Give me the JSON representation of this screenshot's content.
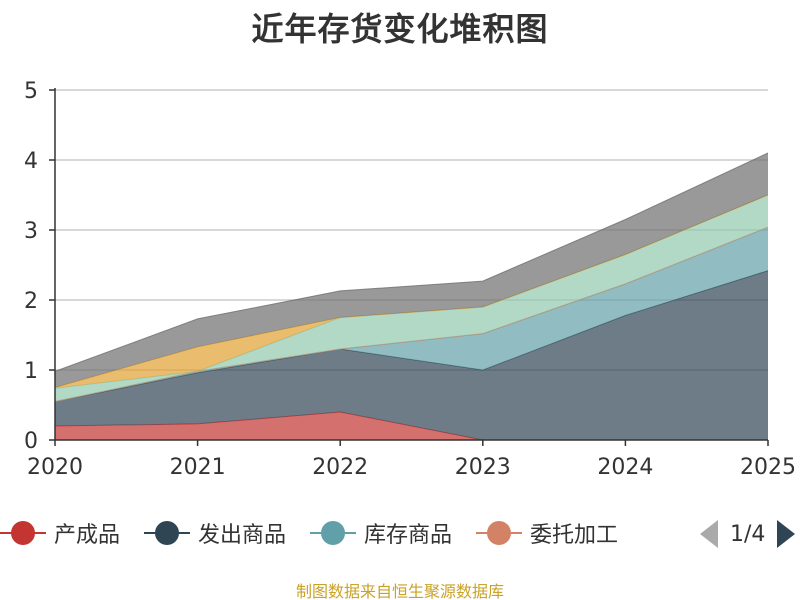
{
  "colors": {
    "series": [
      "#c23531",
      "#2f4554",
      "#61a0a8",
      "#d48265",
      "#91c7ae",
      "#e0a030",
      "#6e6e6e"
    ],
    "grid": "#cccccc",
    "axis": "#333333",
    "source": "#c9a227",
    "pager_inactive": "#aaaaaa",
    "pager_active": "#2f4554"
  },
  "legend": {
    "items": [
      "产成品",
      "发出商品",
      "库存商品",
      "委托加工"
    ],
    "pager": "1/4"
  },
  "source": "制图数据来自恒生聚源数据库",
  "chart_data": {
    "type": "area",
    "stacked": true,
    "title": "近年存货变化堆积图",
    "xlabel": "",
    "ylabel": "",
    "ylim": [
      0,
      5
    ],
    "yticks": [
      "0",
      "1",
      "2",
      "3",
      "4",
      "5"
    ],
    "categories": [
      "2020",
      "2021",
      "2022",
      "2023",
      "2024",
      "2025"
    ],
    "legend_position": "bottom",
    "grid": true,
    "series": [
      {
        "name": "产成品",
        "values": [
          0.2,
          0.23,
          0.4,
          0.0,
          0.0,
          0.0
        ]
      },
      {
        "name": "发出商品",
        "values": [
          0.35,
          0.73,
          0.9,
          1.0,
          1.78,
          2.42
        ]
      },
      {
        "name": "库存商品",
        "values": [
          0.0,
          0.02,
          0.0,
          0.52,
          0.45,
          0.62
        ]
      },
      {
        "name": "委托加工",
        "values": [
          0.0,
          0.0,
          0.0,
          0.0,
          0.0,
          0.0
        ]
      },
      {
        "name": "",
        "values": [
          0.19,
          0.0,
          0.45,
          0.38,
          0.42,
          0.46
        ]
      },
      {
        "name": "",
        "values": [
          0.01,
          0.35,
          0.0,
          0.0,
          0.0,
          0.0
        ]
      },
      {
        "name": "",
        "values": [
          0.23,
          0.4,
          0.38,
          0.37,
          0.5,
          0.6
        ]
      }
    ]
  }
}
